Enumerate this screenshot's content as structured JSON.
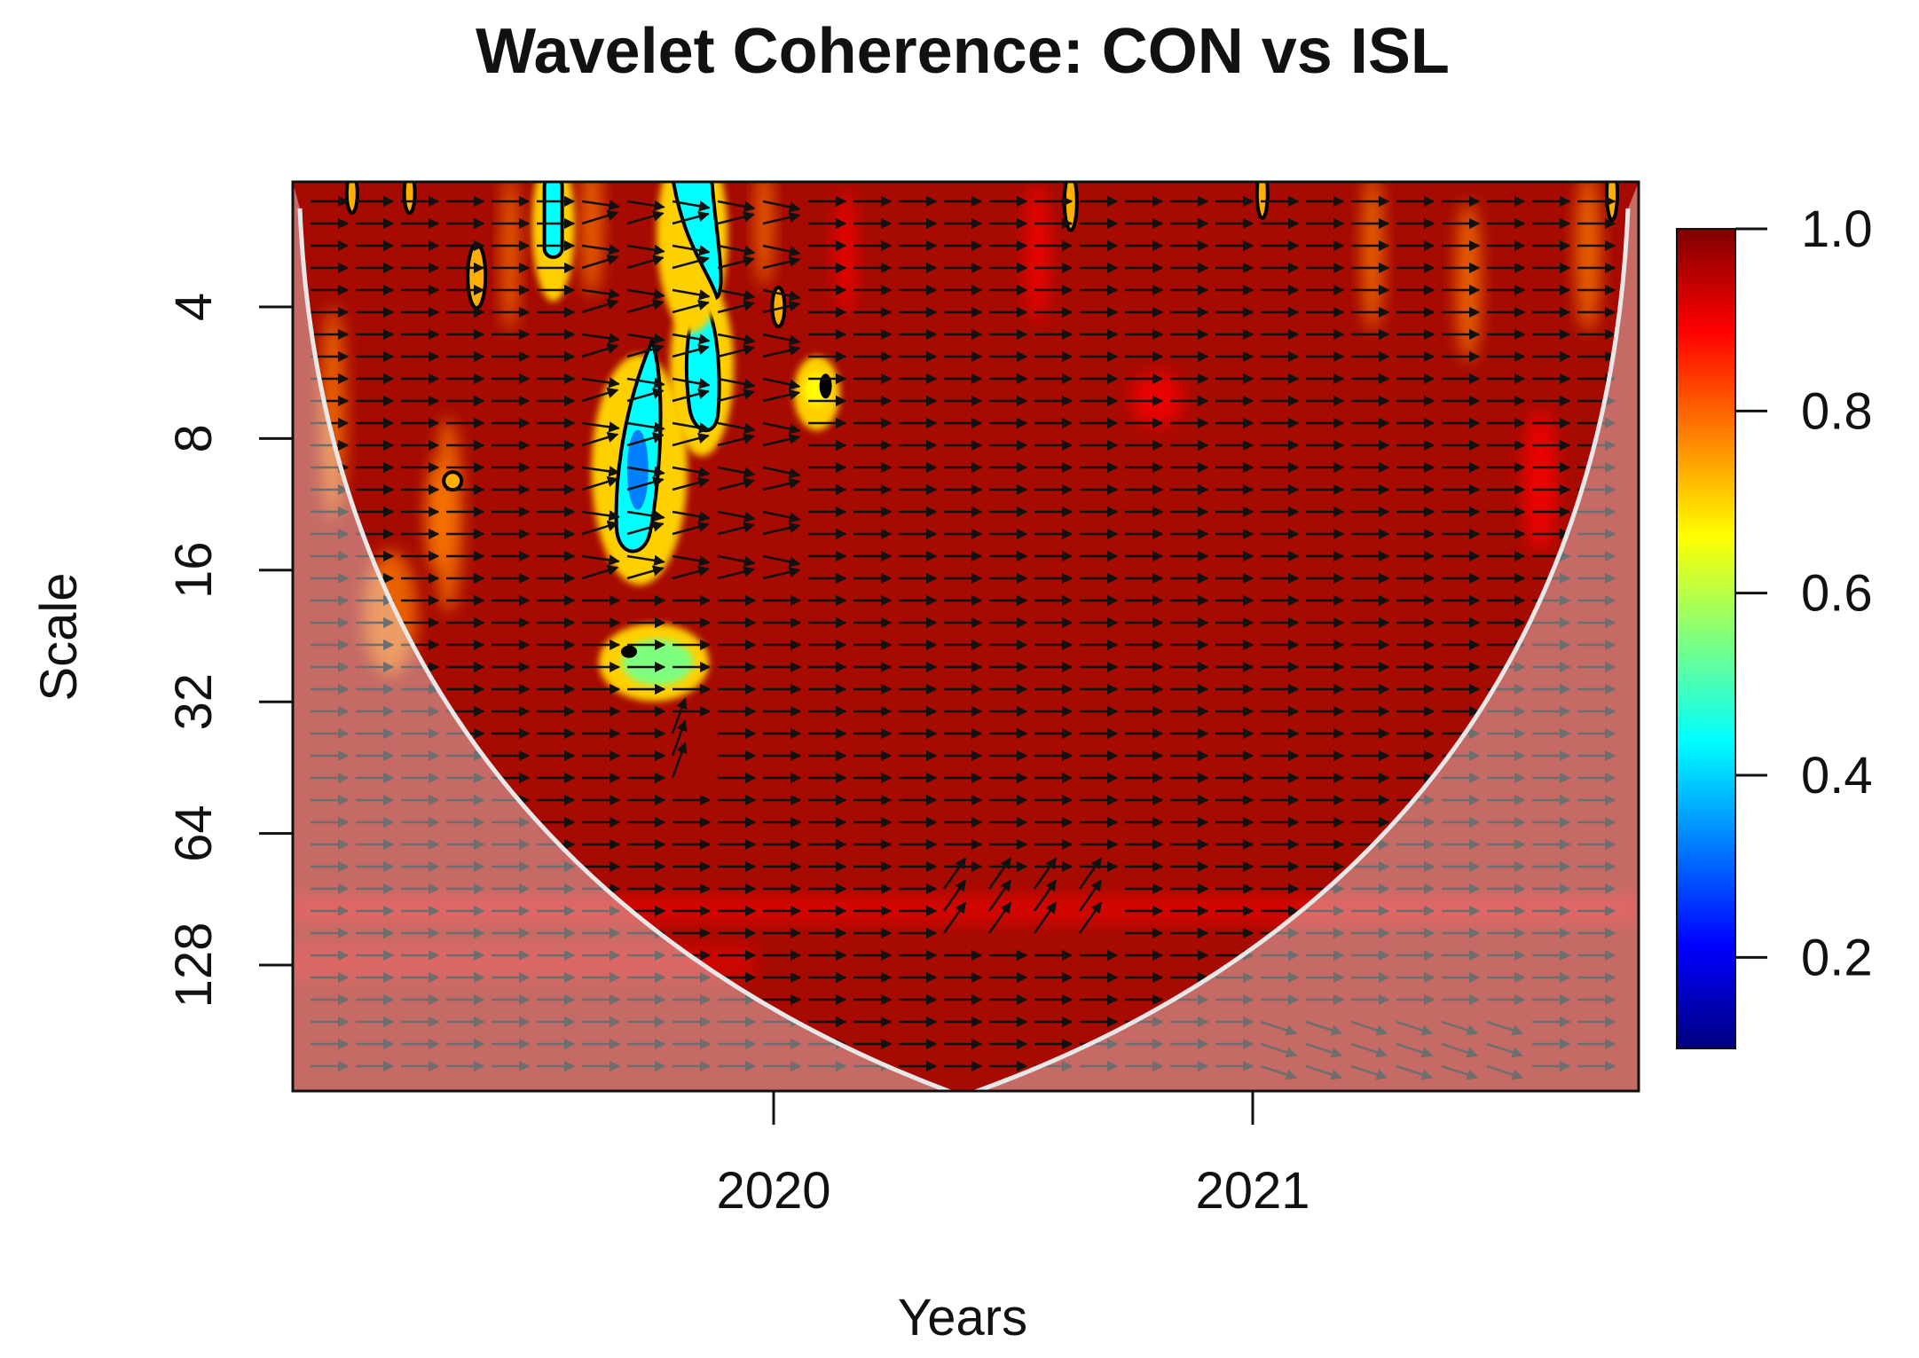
{
  "chart_data": {
    "type": "heatmap",
    "title": "Wavelet Coherence: CON vs ISL",
    "xlabel": "Years",
    "ylabel": "Scale",
    "x_ticks": [
      {
        "label": "2020",
        "value": 2020
      },
      {
        "label": "2021",
        "value": 2021
      }
    ],
    "xlim": [
      2019.0,
      2021.8
    ],
    "y_scale": "log2",
    "y_ticks": [
      {
        "label": "4",
        "value": 4
      },
      {
        "label": "8",
        "value": 8
      },
      {
        "label": "16",
        "value": 16
      },
      {
        "label": "32",
        "value": 32
      },
      {
        "label": "64",
        "value": 64
      },
      {
        "label": "128",
        "value": 128
      }
    ],
    "ylim": [
      2,
      256
    ],
    "colorbar": {
      "range": [
        0.1,
        1.0
      ],
      "ticks": [
        {
          "label": "0.2",
          "value": 0.2
        },
        {
          "label": "0.4",
          "value": 0.4
        },
        {
          "label": "0.6",
          "value": 0.6
        },
        {
          "label": "0.8",
          "value": 0.8
        },
        {
          "label": "1.0",
          "value": 1.0
        }
      ],
      "colors": [
        "#00007f",
        "#0000ff",
        "#007fff",
        "#00ffff",
        "#7fff7f",
        "#ffff00",
        "#ff7f00",
        "#ff0000",
        "#7f0000"
      ]
    },
    "background_coherence": 0.97,
    "features": [
      {
        "name": "low-coherence-streak-a",
        "x": 2019.72,
        "y": 9.0,
        "value": 0.35
      },
      {
        "name": "low-coherence-streak-b",
        "x": 2019.85,
        "y": 5.5,
        "value": 0.45
      },
      {
        "name": "low-coherence-top-a",
        "x": 2019.54,
        "y": 2.5,
        "value": 0.45
      },
      {
        "name": "low-coherence-top-b",
        "x": 2019.83,
        "y": 2.3,
        "value": 0.4
      },
      {
        "name": "mid-coherence-blob",
        "x": 2019.75,
        "y": 26,
        "value": 0.6
      },
      {
        "name": "mid-coherence-spot",
        "x": 2020.09,
        "y": 6.3,
        "value": 0.65
      },
      {
        "name": "band-high-scale",
        "x": 2020.5,
        "y": 95,
        "value": 0.88
      }
    ],
    "cone_of_influence": true,
    "phase_arrows": "mostly-in-phase (pointing right)"
  }
}
